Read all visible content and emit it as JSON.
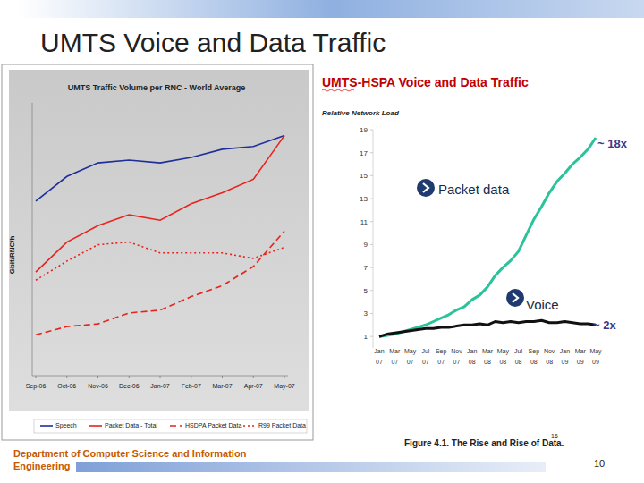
{
  "slide": {
    "title": "UMTS Voice and Data Traffic",
    "footer": "Department of Computer Science and Information Engineering",
    "page_number": "10",
    "caption": "Figure 4.1. The Rise and Rise of Data.",
    "caption_note": "16"
  },
  "chart_data": [
    {
      "type": "line",
      "title": "UMTS Traffic Volume per RNC - World Average",
      "y_label": "Gbit/RNC/h",
      "categories": [
        "Sep-06",
        "Oct-06",
        "Nov-06",
        "Dec-06",
        "Jan-07",
        "Feb-07",
        "Mar-07",
        "Apr-07",
        "May-07"
      ],
      "ylim": [
        0,
        100
      ],
      "tick_labels": "x",
      "grid": false,
      "legend": "bottom",
      "series": [
        {
          "name": "Speech",
          "color": "#1f2f9a",
          "line_style": "solid",
          "values": [
            64,
            73,
            78,
            79,
            78,
            80,
            83,
            84,
            88
          ]
        },
        {
          "name": "Packet Data - Total",
          "color": "#e8231c",
          "line_style": "solid",
          "values": [
            38,
            49,
            55,
            59,
            57,
            63,
            67,
            72,
            88
          ]
        },
        {
          "name": "HSDPA Packet Data",
          "color": "#e8231c",
          "line_style": "dashed",
          "values": [
            15,
            18,
            19,
            23,
            24,
            29,
            33,
            40,
            53
          ]
        },
        {
          "name": "R99 Packet Data",
          "color": "#e8231c",
          "line_style": "dotted",
          "values": [
            35,
            42,
            48,
            49,
            45,
            45,
            45,
            43,
            47
          ]
        }
      ]
    },
    {
      "type": "line",
      "title": "UMTS-HSPA Voice and Data Traffic",
      "subtitle": "Relative Network Load",
      "categories": [
        "Jan 07",
        null,
        "Mar 07",
        null,
        "May 07",
        null,
        "Jul 07",
        null,
        "Sep 07",
        null,
        "Nov 07",
        null,
        "Jan 08",
        null,
        "Mar 08",
        null,
        "May 08",
        null,
        "Jul 08",
        null,
        "Sep 08",
        null,
        "Nov 08",
        null,
        "Jan 09",
        null,
        "Mar 09",
        null,
        "May 09"
      ],
      "ylim": [
        0,
        19
      ],
      "yticks": [
        1,
        3,
        5,
        7,
        9,
        11,
        13,
        15,
        17,
        19
      ],
      "grid": false,
      "annotations": [
        "~ 18x",
        "~ 2x"
      ],
      "series": [
        {
          "name": "Packet data",
          "color": "#2bc39a",
          "line_style": "solid",
          "values": [
            1.0,
            1.1,
            1.2,
            1.4,
            1.6,
            1.8,
            2.0,
            2.3,
            2.6,
            2.9,
            3.3,
            3.6,
            4.2,
            4.6,
            5.3,
            6.3,
            7.0,
            7.6,
            8.4,
            9.8,
            11.2,
            12.3,
            13.5,
            14.5,
            15.2,
            16.0,
            16.6,
            17.3,
            18.3
          ]
        },
        {
          "name": "Voice",
          "color": "#111111",
          "line_style": "solid",
          "values": [
            1.0,
            1.2,
            1.3,
            1.4,
            1.5,
            1.6,
            1.7,
            1.7,
            1.8,
            1.8,
            1.9,
            2.0,
            2.0,
            2.1,
            2.0,
            2.3,
            2.2,
            2.3,
            2.2,
            2.3,
            2.3,
            2.4,
            2.2,
            2.2,
            2.3,
            2.2,
            2.1,
            2.1,
            2.0
          ]
        }
      ]
    }
  ]
}
